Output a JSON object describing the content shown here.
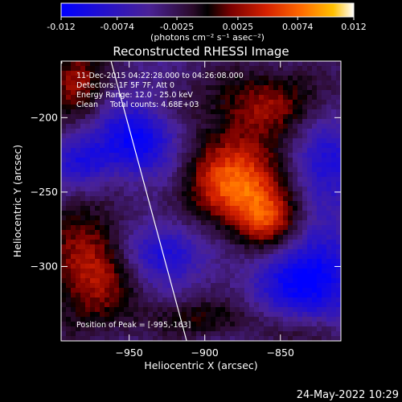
{
  "colorbar": {
    "tick_labels": [
      "-0.012",
      "-0.0074",
      "-0.0025",
      "0.0025",
      "0.0074",
      "0.012"
    ],
    "tick_values": [
      -0.012,
      -0.0074,
      -0.0025,
      0.0025,
      0.0074,
      0.012
    ],
    "range": [
      -0.012,
      0.012
    ],
    "unit_label": "(photons cm⁻² s⁻¹ asec⁻²)"
  },
  "footer": {
    "timestamp": "24-May-2022 10:29"
  },
  "chart_data": {
    "type": "heatmap",
    "title": "Reconstructed RHESSI Image",
    "xlabel": "Heliocentric X (arcsec)",
    "ylabel": "Heliocentric Y (arcsec)",
    "xlim": [
      -995,
      -810
    ],
    "ylim": [
      -350,
      -162
    ],
    "x_ticks": [
      -950,
      -900,
      -850
    ],
    "x_tick_labels": [
      "−950",
      "−900",
      "−850"
    ],
    "y_ticks": [
      -200,
      -250,
      -300
    ],
    "y_tick_labels": [
      "−200",
      "−250",
      "−300"
    ],
    "colormap": [
      "#0000ff",
      "#3b1fb0",
      "#4a2296",
      "#2a0a2a",
      "#000000",
      "#7a0000",
      "#d42000",
      "#ff6a00",
      "#ffc000",
      "#ffffff"
    ],
    "annotations": [
      "11-Dec-2015 04:22:28.000 to 04:26:08.000",
      "Detectors: 1F 5F 7F, Att 0",
      "Energy Range: 12.0 - 25.0 keV",
      "Clean     Total counts: 4.68E+03",
      "Position of Peak = [-995,-163]"
    ],
    "limb_line": {
      "x": [
        -962,
        -912
      ],
      "y": [
        -162,
        -350
      ]
    },
    "peak": {
      "x": -995,
      "y": -163
    },
    "sources": [
      {
        "x": -878,
        "y": -245,
        "sx": 24,
        "sy": 22,
        "amp": 0.0115
      },
      {
        "x": -858,
        "y": -270,
        "sx": 14,
        "sy": 14,
        "amp": 0.006
      },
      {
        "x": -975,
        "y": -300,
        "sx": 22,
        "sy": 30,
        "amp": 0.008
      },
      {
        "x": -860,
        "y": -190,
        "sx": 35,
        "sy": 18,
        "amp": 0.006
      },
      {
        "x": -985,
        "y": -175,
        "sx": 14,
        "sy": 18,
        "amp": 0.007
      },
      {
        "x": -900,
        "y": -335,
        "sx": 28,
        "sy": 10,
        "amp": 0.0045
      },
      {
        "x": -830,
        "y": -345,
        "sx": 18,
        "sy": 10,
        "amp": 0.004
      },
      {
        "x": -945,
        "y": -215,
        "sx": 18,
        "sy": 16,
        "amp": -0.0075
      },
      {
        "x": -830,
        "y": -310,
        "sx": 22,
        "sy": 20,
        "amp": -0.0085
      },
      {
        "x": -930,
        "y": -290,
        "sx": 20,
        "sy": 14,
        "amp": -0.006
      },
      {
        "x": -820,
        "y": -230,
        "sx": 16,
        "sy": 22,
        "amp": -0.006
      },
      {
        "x": -980,
        "y": -230,
        "sx": 14,
        "sy": 12,
        "amp": -0.005
      }
    ]
  }
}
